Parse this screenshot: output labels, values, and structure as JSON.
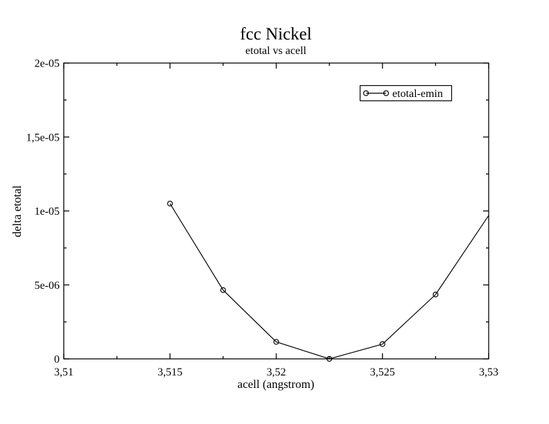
{
  "page": {
    "background": "#ffffff",
    "foreground": "#000000"
  },
  "chart_data": {
    "type": "line",
    "title": "fcc Nickel",
    "subtitle": "etotal vs acell",
    "xlabel": "acell (angstrom)",
    "ylabel": "delta etotal",
    "xlim": [
      3.51,
      3.53
    ],
    "ylim": [
      0,
      2e-05
    ],
    "grid": false,
    "x_major_ticks": [
      3.51,
      3.515,
      3.52,
      3.525,
      3.53
    ],
    "x_tick_labels": [
      "3,51",
      "3,515",
      "3,52",
      "3,525",
      "3,53"
    ],
    "x_minor_ticks": [
      3.5125,
      3.5175,
      3.5225,
      3.5275
    ],
    "y_major_ticks": [
      0,
      5e-06,
      1e-05,
      1.5e-05,
      2e-05
    ],
    "y_tick_labels": [
      "0",
      "5e-06",
      "1e-05",
      "1,5e-05",
      "2e-05"
    ],
    "y_minor_ticks": [
      2.5e-06,
      7.5e-06,
      1.25e-05,
      1.75e-05
    ],
    "legend": {
      "position": "inside-top-right",
      "entries": [
        "etotal-emin"
      ]
    },
    "series": [
      {
        "name": "etotal-emin",
        "marker": "open-circle",
        "color": "#000000",
        "x": [
          3.515,
          3.5175,
          3.52,
          3.5225,
          3.525,
          3.5275,
          3.53
        ],
        "y": [
          1.05e-05,
          4.65e-06,
          1.15e-06,
          0,
          1e-06,
          4.35e-06,
          9.7e-06
        ]
      }
    ]
  }
}
